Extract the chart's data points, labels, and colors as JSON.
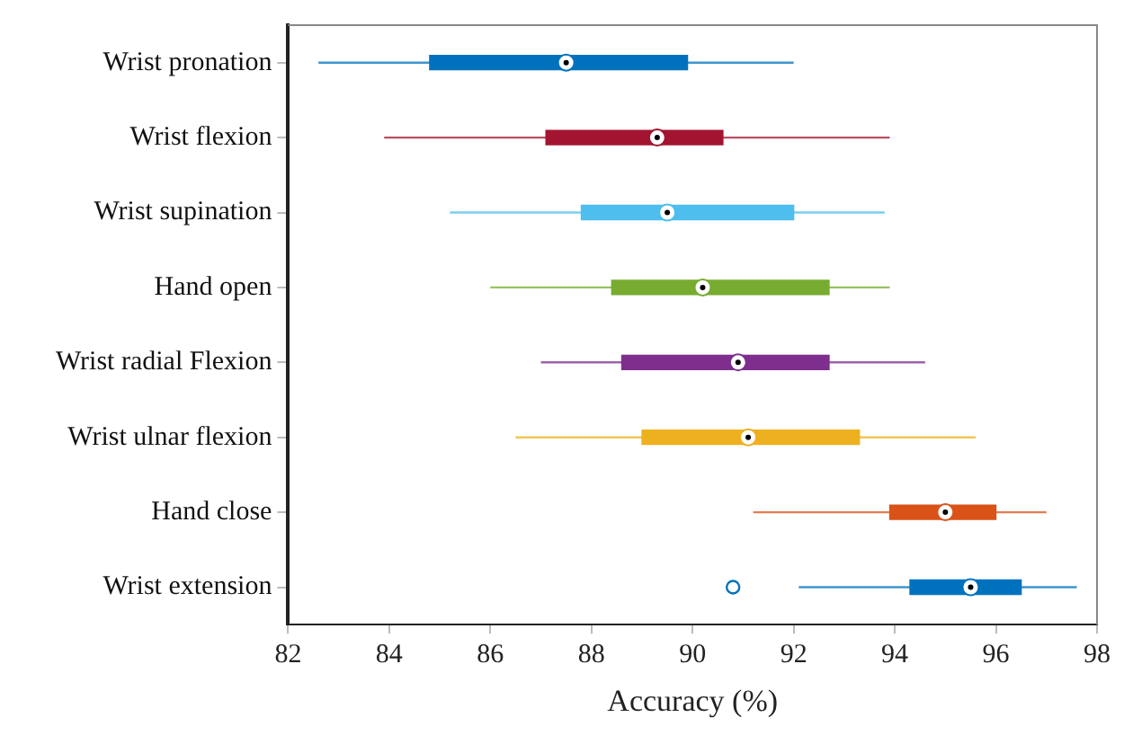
{
  "chart_data": {
    "type": "box",
    "orientation": "horizontal",
    "xlabel": "Accuracy (%)",
    "categories": [
      "Wrist pronation",
      "Wrist flexion",
      "Wrist supination",
      "Hand open",
      "Wrist radial Flexion",
      "Wrist ulnar flexion",
      "Hand close",
      "Wrist extension"
    ],
    "colors": [
      "#0072bd",
      "#a2142f",
      "#4dbeee",
      "#77ac30",
      "#7e2f8e",
      "#edb120",
      "#d95319",
      "#0072bd"
    ],
    "boxes": [
      {
        "low": 82.6,
        "q1": 84.8,
        "median": 87.5,
        "q3": 89.9,
        "high": 92.0
      },
      {
        "low": 83.9,
        "q1": 87.1,
        "median": 89.3,
        "q3": 90.6,
        "high": 93.9
      },
      {
        "low": 85.2,
        "q1": 87.8,
        "median": 89.5,
        "q3": 92.0,
        "high": 93.8
      },
      {
        "low": 86.0,
        "q1": 88.4,
        "median": 90.2,
        "q3": 92.7,
        "high": 93.9
      },
      {
        "low": 87.0,
        "q1": 88.6,
        "median": 90.9,
        "q3": 92.7,
        "high": 94.6
      },
      {
        "low": 86.5,
        "q1": 89.0,
        "median": 91.1,
        "q3": 93.3,
        "high": 95.6
      },
      {
        "low": 91.2,
        "q1": 93.9,
        "median": 95.0,
        "q3": 96.0,
        "high": 97.0
      },
      {
        "low": 92.1,
        "q1": 94.3,
        "median": 95.5,
        "q3": 96.5,
        "high": 97.6,
        "outliers": [
          90.8
        ]
      }
    ],
    "xlim": [
      82,
      98
    ],
    "xticks": [
      82,
      84,
      86,
      88,
      90,
      92,
      94,
      96,
      98
    ],
    "grid": false,
    "legend": false
  }
}
